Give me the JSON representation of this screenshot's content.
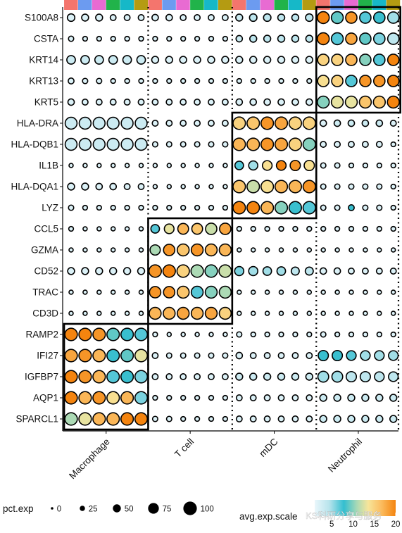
{
  "chart_data": {
    "type": "dotplot",
    "genes": [
      "S100A8",
      "CSTA",
      "KRT14",
      "KRT13",
      "KRT5",
      "HLA-DRA",
      "HLA-DQB1",
      "IL1B",
      "HLA-DQA1",
      "LYZ",
      "CCL5",
      "GZMA",
      "CD52",
      "TRAC",
      "CD3D",
      "RAMP2",
      "IFI27",
      "IGFBP7",
      "AQP1",
      "SPARCL1"
    ],
    "cell_types": [
      "Macrophage",
      "T cell",
      "mDC",
      "Neutrophil"
    ],
    "samples_per_type": 6,
    "sample_colors": [
      "#f4756d",
      "#6c9bf0",
      "#e86bd2",
      "#21b34a",
      "#16b8c8",
      "#b49b12"
    ],
    "color_scale": {
      "title": "avg.exp.scale",
      "ticks": [
        5,
        10,
        15,
        20
      ],
      "range": [
        1,
        20
      ],
      "stops": [
        "#e9f6fb",
        "#b8e4ec",
        "#33bed0",
        "#a8d9b6",
        "#f7e59a",
        "#fbbd61",
        "#f4840f"
      ]
    },
    "size_legend": {
      "title": "pct.exp",
      "values": [
        0,
        25,
        50,
        75,
        100
      ]
    },
    "highlight_boxes": [
      {
        "cell_type": "Neutrophil",
        "genes": [
          "S100A8",
          "KRT5"
        ]
      },
      {
        "cell_type": "mDC",
        "genes": [
          "HLA-DRA",
          "LYZ"
        ]
      },
      {
        "cell_type": "T cell",
        "genes": [
          "CCL5",
          "CD3D"
        ]
      },
      {
        "cell_type": "Macrophage",
        "genes": [
          "RAMP2",
          "SPARCL1"
        ]
      }
    ],
    "watermark": "KS科研分享与服务",
    "pct": [
      [
        45,
        40,
        40,
        30,
        30,
        30,
        35,
        35,
        30,
        30,
        30,
        30,
        40,
        45,
        45,
        40,
        40,
        45,
        85,
        85,
        80,
        80,
        80,
        80
      ],
      [
        25,
        20,
        20,
        20,
        20,
        20,
        20,
        20,
        20,
        20,
        20,
        20,
        35,
        40,
        40,
        40,
        40,
        40,
        85,
        85,
        80,
        80,
        80,
        80
      ],
      [
        55,
        55,
        55,
        55,
        55,
        55,
        40,
        40,
        40,
        40,
        40,
        40,
        40,
        40,
        40,
        40,
        40,
        40,
        80,
        80,
        80,
        80,
        80,
        80
      ],
      [
        30,
        25,
        25,
        20,
        20,
        20,
        20,
        20,
        20,
        20,
        20,
        20,
        20,
        20,
        20,
        20,
        20,
        20,
        80,
        80,
        80,
        80,
        80,
        80
      ],
      [
        35,
        30,
        30,
        30,
        30,
        30,
        30,
        30,
        30,
        30,
        30,
        30,
        35,
        35,
        35,
        35,
        35,
        35,
        85,
        85,
        85,
        85,
        85,
        85
      ],
      [
        85,
        85,
        85,
        85,
        85,
        85,
        30,
        30,
        30,
        30,
        30,
        30,
        90,
        90,
        90,
        90,
        90,
        90,
        35,
        35,
        35,
        35,
        35,
        30
      ],
      [
        85,
        85,
        85,
        85,
        85,
        85,
        25,
        25,
        25,
        25,
        25,
        25,
        90,
        90,
        90,
        90,
        90,
        90,
        30,
        30,
        30,
        30,
        30,
        20
      ],
      [
        15,
        15,
        15,
        15,
        15,
        15,
        15,
        15,
        15,
        15,
        15,
        15,
        55,
        60,
        65,
        65,
        70,
        70,
        25,
        25,
        20,
        20,
        20,
        20
      ],
      [
        40,
        40,
        35,
        35,
        30,
        30,
        15,
        15,
        15,
        15,
        15,
        15,
        90,
        90,
        90,
        90,
        90,
        90,
        25,
        25,
        25,
        25,
        25,
        20
      ],
      [
        25,
        20,
        20,
        20,
        20,
        20,
        20,
        20,
        20,
        20,
        20,
        20,
        90,
        90,
        90,
        90,
        90,
        90,
        25,
        25,
        30,
        25,
        25,
        20
      ],
      [
        20,
        15,
        15,
        15,
        15,
        15,
        55,
        65,
        75,
        75,
        80,
        80,
        20,
        20,
        20,
        20,
        20,
        20,
        20,
        20,
        20,
        20,
        20,
        20
      ],
      [
        15,
        15,
        15,
        15,
        15,
        15,
        70,
        80,
        85,
        85,
        85,
        85,
        15,
        15,
        15,
        15,
        15,
        15,
        15,
        15,
        15,
        15,
        15,
        15
      ],
      [
        40,
        40,
        40,
        40,
        40,
        40,
        90,
        90,
        90,
        90,
        90,
        90,
        60,
        60,
        55,
        55,
        50,
        50,
        35,
        35,
        30,
        30,
        30,
        30
      ],
      [
        15,
        15,
        15,
        15,
        15,
        15,
        80,
        80,
        85,
        85,
        85,
        85,
        15,
        15,
        15,
        15,
        15,
        15,
        15,
        15,
        15,
        15,
        15,
        15
      ],
      [
        15,
        15,
        15,
        15,
        15,
        15,
        85,
        85,
        85,
        85,
        85,
        85,
        15,
        15,
        15,
        15,
        15,
        15,
        15,
        15,
        15,
        15,
        15,
        15
      ],
      [
        90,
        90,
        90,
        90,
        90,
        90,
        20,
        15,
        15,
        15,
        15,
        15,
        25,
        20,
        20,
        20,
        20,
        20,
        25,
        20,
        20,
        20,
        20,
        20
      ],
      [
        90,
        90,
        90,
        90,
        90,
        90,
        30,
        25,
        25,
        25,
        25,
        25,
        35,
        30,
        30,
        30,
        30,
        30,
        70,
        70,
        65,
        65,
        65,
        65
      ],
      [
        90,
        90,
        90,
        90,
        90,
        90,
        30,
        30,
        30,
        30,
        30,
        30,
        40,
        40,
        40,
        40,
        40,
        40,
        75,
        75,
        70,
        70,
        65,
        65
      ],
      [
        90,
        90,
        90,
        90,
        90,
        90,
        20,
        20,
        20,
        20,
        20,
        20,
        30,
        30,
        30,
        30,
        30,
        30,
        40,
        40,
        40,
        40,
        40,
        40
      ],
      [
        90,
        90,
        90,
        90,
        90,
        90,
        25,
        25,
        20,
        20,
        20,
        20,
        30,
        30,
        30,
        30,
        30,
        30,
        40,
        40,
        40,
        40,
        40,
        40
      ]
    ],
    "avg": [
      [
        2,
        2,
        2,
        2,
        2,
        2,
        2,
        2,
        2,
        2,
        2,
        2,
        3,
        4,
        4,
        4,
        4,
        4,
        20,
        9,
        19,
        7,
        8,
        5
      ],
      [
        2,
        2,
        2,
        2,
        2,
        2,
        2,
        2,
        2,
        2,
        2,
        2,
        3,
        4,
        4,
        4,
        4,
        4,
        20,
        7,
        18,
        9,
        6,
        4
      ],
      [
        3,
        3,
        3,
        3,
        3,
        3,
        2,
        2,
        2,
        2,
        2,
        2,
        2,
        2,
        2,
        2,
        2,
        2,
        15,
        15,
        17,
        10,
        7,
        20
      ],
      [
        2,
        2,
        2,
        2,
        2,
        2,
        2,
        2,
        2,
        2,
        2,
        2,
        2,
        2,
        2,
        2,
        2,
        2,
        14,
        15,
        7,
        19,
        19,
        20
      ],
      [
        2,
        2,
        2,
        2,
        2,
        2,
        2,
        2,
        2,
        2,
        2,
        2,
        2,
        2,
        2,
        2,
        2,
        2,
        10,
        13,
        13,
        16,
        16,
        20
      ],
      [
        3,
        3,
        3,
        3,
        3,
        3,
        2,
        2,
        2,
        2,
        2,
        2,
        15,
        16,
        19,
        18,
        15,
        15,
        2,
        3,
        3,
        3,
        3,
        2
      ],
      [
        3,
        3,
        3,
        3,
        3,
        3,
        2,
        2,
        2,
        2,
        2,
        2,
        17,
        17,
        19,
        18,
        15,
        10,
        2,
        2,
        2,
        2,
        2,
        2
      ],
      [
        2,
        2,
        2,
        2,
        2,
        2,
        2,
        2,
        2,
        2,
        2,
        2,
        7,
        5,
        14,
        20,
        19,
        14,
        2,
        2,
        2,
        2,
        2,
        2
      ],
      [
        2,
        2,
        2,
        2,
        2,
        2,
        2,
        2,
        2,
        2,
        2,
        2,
        16,
        12,
        14,
        17,
        17,
        19,
        2,
        2,
        2,
        2,
        2,
        2
      ],
      [
        2,
        2,
        2,
        2,
        2,
        2,
        2,
        2,
        2,
        2,
        2,
        2,
        20,
        20,
        17,
        10,
        8,
        7,
        2,
        2,
        8,
        2,
        2,
        2
      ],
      [
        2,
        2,
        2,
        2,
        2,
        2,
        7,
        13,
        17,
        16,
        12,
        18,
        2,
        2,
        2,
        2,
        2,
        2,
        2,
        2,
        2,
        2,
        2,
        2
      ],
      [
        2,
        2,
        2,
        2,
        2,
        2,
        11,
        19,
        16,
        19,
        17,
        17,
        2,
        2,
        2,
        2,
        2,
        2,
        2,
        2,
        2,
        2,
        2,
        2
      ],
      [
        2,
        2,
        2,
        2,
        2,
        2,
        19,
        20,
        15,
        11,
        10,
        12,
        6,
        5,
        5,
        5,
        4,
        4,
        2,
        2,
        2,
        2,
        2,
        2
      ],
      [
        2,
        2,
        2,
        2,
        2,
        2,
        19,
        19,
        16,
        7,
        10,
        11,
        2,
        2,
        2,
        2,
        2,
        2,
        2,
        2,
        2,
        2,
        2,
        2
      ],
      [
        2,
        2,
        2,
        2,
        2,
        2,
        17,
        17,
        18,
        17,
        18,
        15,
        2,
        2,
        2,
        2,
        2,
        2,
        2,
        2,
        2,
        2,
        2,
        2
      ],
      [
        20,
        20,
        19,
        9,
        8,
        7,
        2,
        2,
        2,
        2,
        2,
        2,
        2,
        2,
        2,
        2,
        2,
        2,
        2,
        2,
        2,
        2,
        2,
        2
      ],
      [
        18,
        19,
        17,
        8,
        9,
        13,
        2,
        2,
        2,
        2,
        2,
        2,
        2,
        2,
        2,
        2,
        2,
        2,
        8,
        8,
        7,
        5,
        5,
        5
      ],
      [
        20,
        19,
        17,
        7,
        8,
        6,
        2,
        2,
        2,
        2,
        2,
        2,
        3,
        3,
        3,
        3,
        3,
        3,
        5,
        5,
        4,
        4,
        4,
        4
      ],
      [
        20,
        17,
        19,
        14,
        17,
        6,
        2,
        2,
        2,
        2,
        2,
        2,
        2,
        2,
        2,
        2,
        2,
        2,
        3,
        3,
        3,
        3,
        3,
        3
      ],
      [
        11,
        13,
        17,
        17,
        20,
        20,
        2,
        2,
        2,
        2,
        2,
        2,
        2,
        2,
        2,
        2,
        2,
        2,
        3,
        3,
        3,
        3,
        3,
        3
      ]
    ]
  }
}
